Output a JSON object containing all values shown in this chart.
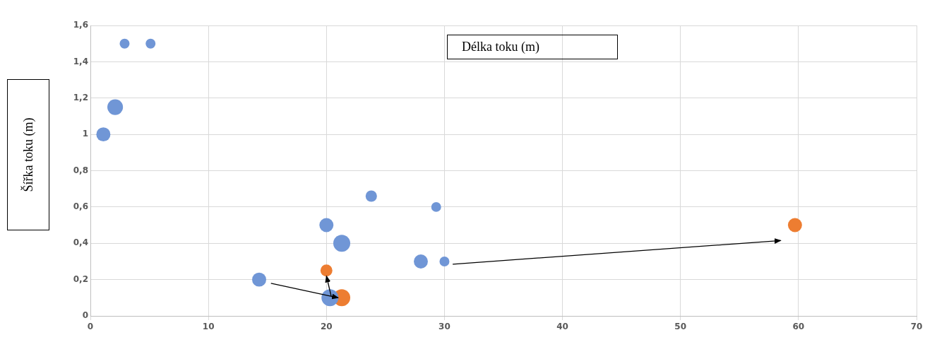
{
  "chart_data": {
    "type": "bubble",
    "xlabel": "Délka toku (m)",
    "ylabel": "Šířka toku (m)",
    "series": [
      {
        "color": "#7096d6",
        "x": [
          2.9,
          5.1,
          2.1,
          1.1,
          23.8,
          29.3,
          20.0,
          21.3,
          28.0,
          30.0,
          14.3,
          20.3
        ],
        "values": [
          1.5,
          1.5,
          1.15,
          1.0,
          0.66,
          0.6,
          0.5,
          0.4,
          0.3,
          0.3,
          0.2,
          0.1
        ],
        "sizes": [
          0.34,
          0.34,
          0.85,
          0.69,
          0.45,
          0.34,
          0.69,
          1,
          0.69,
          0.34,
          0.69,
          1
        ]
      },
      {
        "color": "#ed7d31",
        "x": [
          20.0,
          21.3,
          59.7
        ],
        "values": [
          0.25,
          0.1,
          0.5
        ],
        "sizes": [
          0.5,
          1,
          0.69
        ]
      }
    ],
    "xlim": [
      0,
      70
    ],
    "xticks": [
      0,
      10,
      20,
      30,
      40,
      50,
      60,
      70
    ],
    "ylim": [
      0,
      1.6
    ],
    "yticks": [
      {
        "value": 0,
        "label": "0"
      },
      {
        "value": 0.2,
        "label": "0,2"
      },
      {
        "value": 0.4,
        "label": "0,4"
      },
      {
        "value": 0.6,
        "label": "0,6"
      },
      {
        "value": 0.8,
        "label": "0,8"
      },
      {
        "value": 1,
        "label": "1"
      },
      {
        "value": 1.2,
        "label": "1,2"
      },
      {
        "value": 1.4,
        "label": "1,4"
      },
      {
        "value": 1.6,
        "label": "1,6"
      }
    ],
    "grid": true,
    "legend": false
  }
}
